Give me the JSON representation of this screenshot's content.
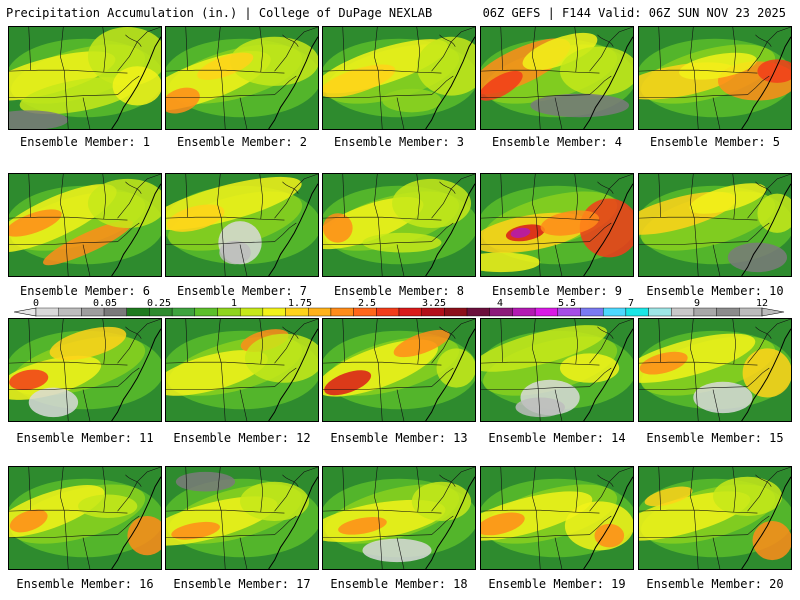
{
  "header": {
    "left_title": "Precipitation Accumulation (in.) | College of DuPage NEXLAB",
    "right_title": "06Z GEFS | F144 Valid: 06Z SUN NOV 23 2025"
  },
  "colorbar": {
    "labels": [
      "0",
      "0.05",
      "0.25",
      "1",
      "1.75",
      "2.5",
      "3.25",
      "4",
      "5.5",
      "7",
      "9",
      "12"
    ],
    "colors": [
      "#d9d9d9",
      "#bdbdbd",
      "#9e9e9e",
      "#7a7a7a",
      "#1e7a1e",
      "#2e8b2e",
      "#3fa33f",
      "#5cbf2a",
      "#8fd41e",
      "#c6e81a",
      "#f2f21a",
      "#ffd21a",
      "#ffb21a",
      "#ff8c1a",
      "#ff661a",
      "#f23c1a",
      "#d91a1a",
      "#b30f1a",
      "#8c0f1a",
      "#6b0f3c",
      "#8c1a7a",
      "#b31ab3",
      "#d91ae6",
      "#a64de6",
      "#7a7af2",
      "#4dd9ff",
      "#1ae6e6",
      "#9ee6e6",
      "#c8c8c8",
      "#a8a8a8",
      "#8c8c8c",
      "#bcbcbc"
    ]
  },
  "panels": [
    {
      "caption": "Ensemble Member: 1"
    },
    {
      "caption": "Ensemble Member: 2"
    },
    {
      "caption": "Ensemble Member: 3"
    },
    {
      "caption": "Ensemble Member: 4"
    },
    {
      "caption": "Ensemble Member: 5"
    },
    {
      "caption": "Ensemble Member: 6"
    },
    {
      "caption": "Ensemble Member: 7"
    },
    {
      "caption": "Ensemble Member: 8"
    },
    {
      "caption": "Ensemble Member: 9"
    },
    {
      "caption": "Ensemble Member: 10"
    },
    {
      "caption": "Ensemble Member: 11"
    },
    {
      "caption": "Ensemble Member: 12"
    },
    {
      "caption": "Ensemble Member: 13"
    },
    {
      "caption": "Ensemble Member: 14"
    },
    {
      "caption": "Ensemble Member: 15"
    },
    {
      "caption": "Ensemble Member: 16"
    },
    {
      "caption": "Ensemble Member: 17"
    },
    {
      "caption": "Ensemble Member: 18"
    },
    {
      "caption": "Ensemble Member: 19"
    },
    {
      "caption": "Ensemble Member: 20"
    }
  ]
}
